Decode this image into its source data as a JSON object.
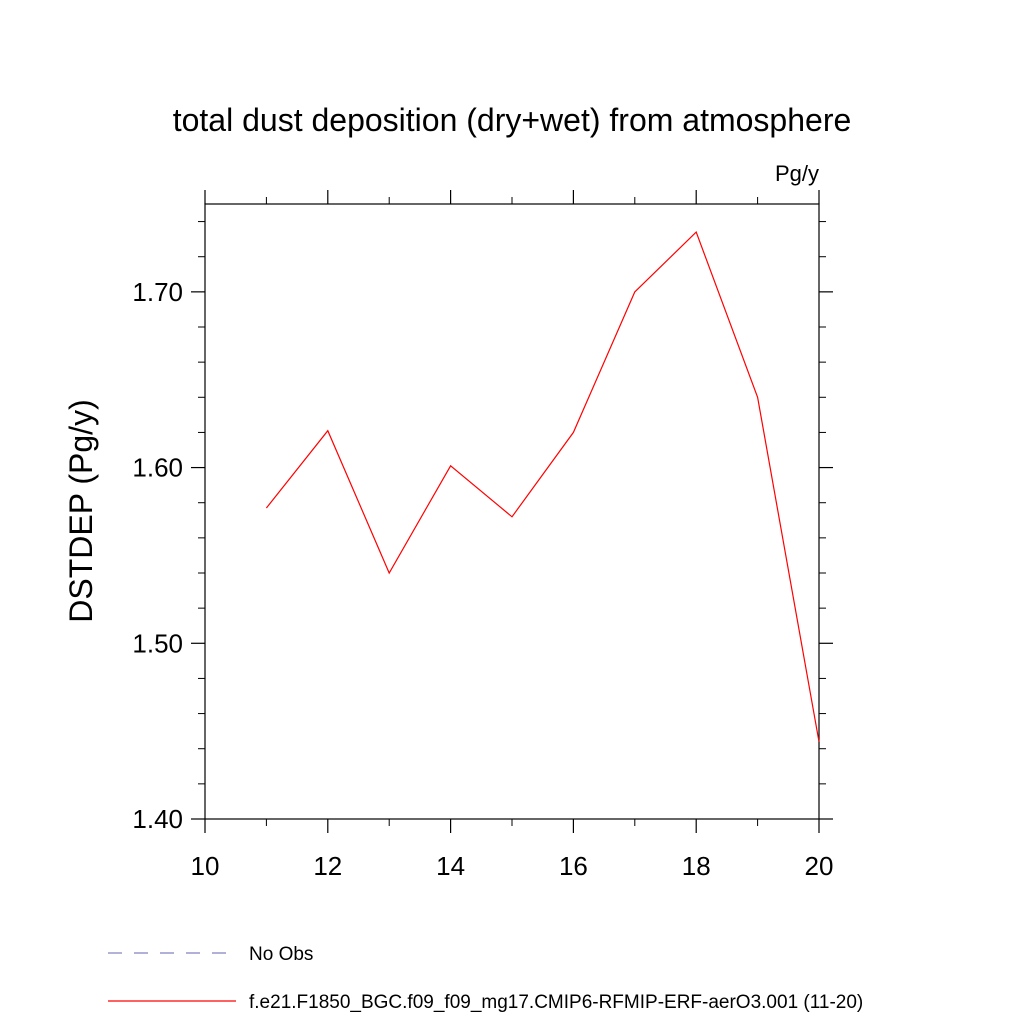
{
  "chart_data": {
    "type": "line",
    "title": "total dust deposition (dry+wet) from atmosphere",
    "units": "Pg/y",
    "ylabel": "DSTDEP  (Pg/y)",
    "xlabel": "",
    "xlim": [
      10,
      20
    ],
    "ylim": [
      1.4,
      1.75
    ],
    "xticks": [
      10,
      12,
      14,
      16,
      18,
      20
    ],
    "yticks": [
      1.4,
      1.5,
      1.6,
      1.7
    ],
    "ytick_labels": [
      "1.40",
      "1.50",
      "1.60",
      "1.70"
    ],
    "x_minor_step": 1,
    "y_minor_step": 0.02,
    "grid": false,
    "legend_position": "bottom",
    "series": [
      {
        "name": "f.e21.F1850_BGC.f09_f09_mg17.CMIP6-RFMIP-ERF-aerO3.001 (11-20)",
        "color": "#ff0000",
        "dash": "solid",
        "x": [
          11,
          12,
          13,
          14,
          15,
          16,
          17,
          18,
          19,
          20
        ],
        "values": [
          1.577,
          1.621,
          1.54,
          1.601,
          1.572,
          1.62,
          1.7,
          1.734,
          1.64,
          1.444
        ]
      }
    ],
    "legend": [
      {
        "label": "No Obs",
        "color": "#8080c0",
        "dash": "dashed"
      },
      {
        "label": "f.e21.F1850_BGC.f09_f09_mg17.CMIP6-RFMIP-ERF-aerO3.001 (11-20)",
        "color": "#ff0000",
        "dash": "solid"
      }
    ]
  }
}
